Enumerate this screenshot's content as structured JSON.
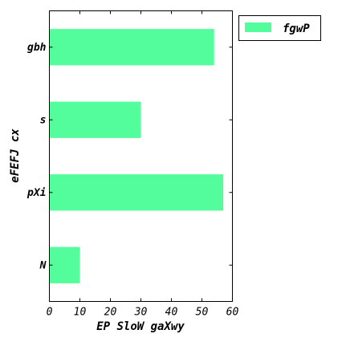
{
  "chart_data": {
    "type": "bar",
    "orientation": "horizontal",
    "categories": [
      "gbh",
      "s",
      "pXi",
      "N"
    ],
    "series": [
      {
        "name": "fgwP",
        "values": [
          54,
          30,
          57,
          10
        ],
        "color": "#54fd9c"
      }
    ],
    "xlabel": "EP SloW gaXwy",
    "ylabel": "eFEFJ cx",
    "xlim": [
      0,
      60
    ],
    "xticks": [
      "0",
      "10",
      "20",
      "30",
      "40",
      "50",
      "60"
    ],
    "grid": false,
    "legend_position": "outside-top-right"
  }
}
